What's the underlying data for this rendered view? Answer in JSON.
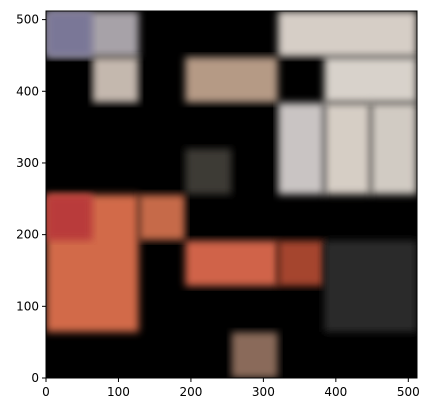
{
  "chart_data": {
    "type": "heatmap",
    "title": "",
    "xlabel": "",
    "ylabel": "",
    "xlim": [
      0,
      512
    ],
    "ylim": [
      0,
      512
    ],
    "x_ticks": [
      0,
      100,
      200,
      300,
      400,
      500
    ],
    "y_ticks": [
      0,
      100,
      200,
      300,
      400,
      500
    ],
    "grid": false,
    "description_of_content": "",
    "tile_size": 64,
    "tiles": [
      {
        "x0": 0,
        "y0": 448,
        "x1": 128,
        "y1": 512,
        "color": "#a7a2a8"
      },
      {
        "x0": 64,
        "y0": 384,
        "x1": 128,
        "y1": 448,
        "color": "#c4b8ae"
      },
      {
        "x0": 0,
        "y0": 448,
        "x1": 64,
        "y1": 512,
        "color": "#7a7797"
      },
      {
        "x0": 320,
        "y0": 448,
        "x1": 512,
        "y1": 512,
        "color": "#d6cec6"
      },
      {
        "x0": 384,
        "y0": 384,
        "x1": 512,
        "y1": 448,
        "color": "#d8d2cb"
      },
      {
        "x0": 384,
        "y0": 256,
        "x1": 448,
        "y1": 384,
        "color": "#d6cec5"
      },
      {
        "x0": 448,
        "y0": 256,
        "x1": 512,
        "y1": 384,
        "color": "#d1cbc3"
      },
      {
        "x0": 192,
        "y0": 384,
        "x1": 320,
        "y1": 448,
        "color": "#b59a85"
      },
      {
        "x0": 320,
        "y0": 256,
        "x1": 384,
        "y1": 384,
        "color": "#c9c4c3"
      },
      {
        "x0": 192,
        "y0": 256,
        "x1": 256,
        "y1": 320,
        "color": "#3e3a36"
      },
      {
        "x0": 0,
        "y0": 64,
        "x1": 128,
        "y1": 256,
        "color": "#d26a4a"
      },
      {
        "x0": 0,
        "y0": 192,
        "x1": 64,
        "y1": 256,
        "color": "#b93a3a"
      },
      {
        "x0": 128,
        "y0": 192,
        "x1": 192,
        "y1": 256,
        "color": "#c66a4a"
      },
      {
        "x0": 192,
        "y0": 128,
        "x1": 320,
        "y1": 192,
        "color": "#d0634a"
      },
      {
        "x0": 320,
        "y0": 128,
        "x1": 384,
        "y1": 192,
        "color": "#a5452e"
      },
      {
        "x0": 384,
        "y0": 64,
        "x1": 512,
        "y1": 192,
        "color": "#2a2a2a"
      },
      {
        "x0": 256,
        "y0": 0,
        "x1": 320,
        "y1": 64,
        "color": "#8a6a5a"
      }
    ]
  }
}
